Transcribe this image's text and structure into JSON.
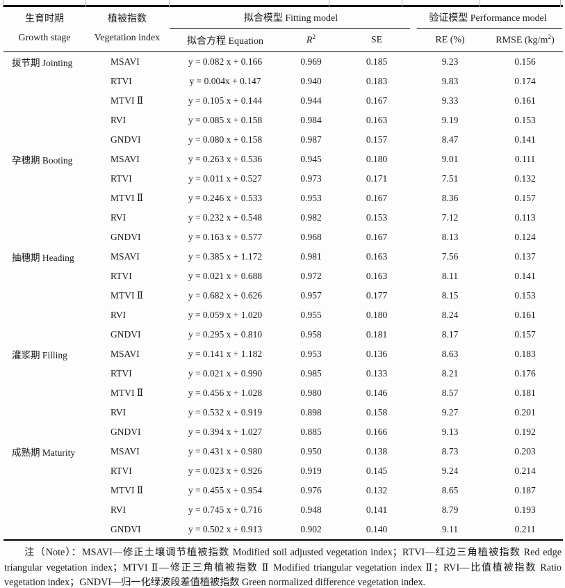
{
  "table": {
    "header": {
      "growth_stage": {
        "zh": "生育时期",
        "en": "Growth stage"
      },
      "vegetation_index": {
        "zh": "植被指数",
        "en": "Vegetation index"
      },
      "fitting_model_group": "拟合模型 Fitting model",
      "performance_model_group": "验证模型 Performance model",
      "equation": "拟合方程 Equation",
      "r2": {
        "base": "R",
        "sup": "2"
      },
      "se": "SE",
      "re": "RE (%)",
      "rmse": {
        "pre": "RMSE (kg/m",
        "sup": "2",
        "post": ")"
      }
    },
    "sections": [
      {
        "stage": "拔节期 Jointing",
        "rows": [
          {
            "index": "MSAVI",
            "equation": "y = 0.082 x + 0.166",
            "r2": "0.969",
            "se": "0.185",
            "re": "9.23",
            "rmse": "0.156"
          },
          {
            "index": "RTVI",
            "equation": "y = 0.004x + 0.147",
            "r2": "0.940",
            "se": "0.183",
            "re": "9.83",
            "rmse": "0.174"
          },
          {
            "index": "MTVI Ⅱ",
            "equation": "y = 0.105 x + 0.144",
            "r2": "0.944",
            "se": "0.167",
            "re": "9.33",
            "rmse": "0.161"
          },
          {
            "index": "RVI",
            "equation": "y = 0.085 x + 0.158",
            "r2": "0.984",
            "se": "0.163",
            "re": "9.19",
            "rmse": "0.153"
          },
          {
            "index": "GNDVI",
            "equation": "y = 0.080 x + 0.158",
            "r2": "0.987",
            "se": "0.157",
            "re": "8.47",
            "rmse": "0.141"
          }
        ]
      },
      {
        "stage": "孕穗期 Booting",
        "rows": [
          {
            "index": "MSAVI",
            "equation": "y = 0.263 x + 0.536",
            "r2": "0.945",
            "se": "0.180",
            "re": "9.01",
            "rmse": "0.111"
          },
          {
            "index": "RTVI",
            "equation": "y = 0.011 x + 0.527",
            "r2": "0.973",
            "se": "0.171",
            "re": "7.51",
            "rmse": "0.132"
          },
          {
            "index": "MTVI Ⅱ",
            "equation": "y = 0.246 x + 0.533",
            "r2": "0.953",
            "se": "0.167",
            "re": "8.36",
            "rmse": "0.157"
          },
          {
            "index": "RVI",
            "equation": "y = 0.232 x + 0.548",
            "r2": "0.982",
            "se": "0.153",
            "re": "7.12",
            "rmse": "0.113"
          },
          {
            "index": "GNDVI",
            "equation": "y = 0.163 x + 0.577",
            "r2": "0.968",
            "se": "0.167",
            "re": "8.13",
            "rmse": "0.124"
          }
        ]
      },
      {
        "stage": "抽穗期 Heading",
        "rows": [
          {
            "index": "MSAVI",
            "equation": "y = 0.385 x + 1.172",
            "r2": "0.981",
            "se": "0.163",
            "re": "7.56",
            "rmse": "0.137"
          },
          {
            "index": "RTVI",
            "equation": "y = 0.021 x + 0.688",
            "r2": "0.972",
            "se": "0.163",
            "re": "8.11",
            "rmse": "0.141"
          },
          {
            "index": "MTVI Ⅱ",
            "equation": "y = 0.682 x + 0.626",
            "r2": "0.957",
            "se": "0.177",
            "re": "8.15",
            "rmse": "0.153"
          },
          {
            "index": "RVI",
            "equation": "y = 0.059 x + 1.020",
            "r2": "0.955",
            "se": "0.180",
            "re": "8.24",
            "rmse": "0.161"
          },
          {
            "index": "GNDVI",
            "equation": "y = 0.295 x + 0.810",
            "r2": "0.958",
            "se": "0.181",
            "re": "8.17",
            "rmse": "0.157"
          }
        ]
      },
      {
        "stage": "灌浆期 Filling",
        "rows": [
          {
            "index": "MSAVI",
            "equation": "y = 0.141 x + 1.182",
            "r2": "0.953",
            "se": "0.136",
            "re": "8.63",
            "rmse": "0.183"
          },
          {
            "index": "RTVI",
            "equation": "y = 0.021 x + 0.990",
            "r2": "0.985",
            "se": "0.133",
            "re": "8.21",
            "rmse": "0.176"
          },
          {
            "index": "MTVI Ⅱ",
            "equation": "y = 0.456 x + 1.028",
            "r2": "0.980",
            "se": "0.146",
            "re": "8.57",
            "rmse": "0.181"
          },
          {
            "index": "RVI",
            "equation": "y = 0.532 x + 0.919",
            "r2": "0.898",
            "se": "0.158",
            "re": "9.27",
            "rmse": "0.201"
          },
          {
            "index": "GNDVI",
            "equation": "y = 0.394 x + 1.027",
            "r2": "0.885",
            "se": "0.166",
            "re": "9.13",
            "rmse": "0.192"
          }
        ]
      },
      {
        "stage": "成熟期 Maturity",
        "rows": [
          {
            "index": "MSAVI",
            "equation": "y = 0.431 x + 0.980",
            "r2": "0.950",
            "se": "0.138",
            "re": "8.73",
            "rmse": "0.203"
          },
          {
            "index": "RTVI",
            "equation": "y = 0.023 x + 0.926",
            "r2": "0.919",
            "se": "0.145",
            "re": "9.24",
            "rmse": "0.214"
          },
          {
            "index": "MTVI Ⅱ",
            "equation": "y = 0.455 x + 0.954",
            "r2": "0.976",
            "se": "0.132",
            "re": "8.65",
            "rmse": "0.187"
          },
          {
            "index": "RVI",
            "equation": "y = 0.745 x + 0.716",
            "r2": "0.948",
            "se": "0.141",
            "re": "8.79",
            "rmse": "0.193"
          },
          {
            "index": "GNDVI",
            "equation": "y = 0.502 x + 0.913",
            "r2": "0.902",
            "se": "0.140",
            "re": "9.11",
            "rmse": "0.211"
          }
        ]
      }
    ]
  },
  "footnote": "注（Note）：MSAVI—修正土壤调节植被指数 Modified soil adjusted vegetation index；RTVI—红边三角植被指数 Red edge triangular vegetation index；MTVI Ⅱ—修正三角植被指数 Ⅱ Modified triangular vegetation index Ⅱ；RVI—比值植被指数 Ratio vegetation index；GNDVI—归一化绿波段差值植被指数 Green normalized difference vegetation index.",
  "colors": {
    "text": "#1b1b1b",
    "rule": "#000000",
    "background": "#fdfdfd"
  }
}
